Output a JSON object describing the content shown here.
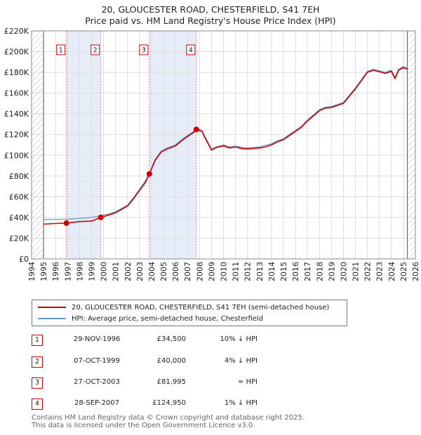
{
  "title_line1": "20, GLOUCESTER ROAD, CHESTERFIELD, S41 7EH",
  "title_line2": "Price paid vs. HM Land Registry's House Price Index (HPI)",
  "chart_data": {
    "type": "line",
    "xlim": [
      1994,
      2026
    ],
    "ylim": [
      0,
      220000
    ],
    "x_ticks": [
      1994,
      1995,
      1996,
      1997,
      1998,
      1999,
      2000,
      2001,
      2002,
      2003,
      2004,
      2005,
      2006,
      2007,
      2008,
      2009,
      2010,
      2011,
      2012,
      2013,
      2014,
      2015,
      2016,
      2017,
      2018,
      2019,
      2020,
      2021,
      2022,
      2023,
      2024,
      2025,
      2026
    ],
    "y_ticks": [
      {
        "v": 0,
        "label": "£0"
      },
      {
        "v": 20000,
        "label": "£20K"
      },
      {
        "v": 40000,
        "label": "£40K"
      },
      {
        "v": 60000,
        "label": "£60K"
      },
      {
        "v": 80000,
        "label": "£80K"
      },
      {
        "v": 100000,
        "label": "£100K"
      },
      {
        "v": 120000,
        "label": "£120K"
      },
      {
        "v": 140000,
        "label": "£140K"
      },
      {
        "v": 160000,
        "label": "£160K"
      },
      {
        "v": 180000,
        "label": "£180K"
      },
      {
        "v": 200000,
        "label": "£200K"
      },
      {
        "v": 220000,
        "label": "£220K"
      }
    ],
    "data_start": 1995.0,
    "data_end": 2025.33,
    "series": [
      {
        "name": "20, GLOUCESTER ROAD, CHESTERFIELD, S41 7EH (semi-detached house)",
        "color": "#cc0000",
        "x": [
          1995.0,
          1996.0,
          1996.91,
          1998.0,
          1999.0,
          1999.77,
          2000.5,
          2001.0,
          2002.0,
          2002.5,
          2003.0,
          2003.5,
          2003.82,
          2004.3,
          2004.8,
          2005.3,
          2006.0,
          2006.5,
          2007.0,
          2007.5,
          2007.74,
          2008.2,
          2008.5,
          2009.0,
          2009.4,
          2010.0,
          2010.5,
          2011.0,
          2011.5,
          2012.0,
          2012.5,
          2013.0,
          2013.5,
          2014.0,
          2014.5,
          2015.0,
          2015.5,
          2016.0,
          2016.5,
          2017.0,
          2017.5,
          2018.0,
          2018.5,
          2019.0,
          2019.5,
          2020.0,
          2020.5,
          2021.0,
          2021.5,
          2022.0,
          2022.5,
          2023.0,
          2023.5,
          2024.0,
          2024.3,
          2024.6,
          2025.0,
          2025.33
        ],
        "y": [
          33500,
          34200,
          34500,
          36000,
          36500,
          40000,
          42500,
          44500,
          51000,
          58000,
          66000,
          74000,
          81995,
          95000,
          103000,
          106000,
          109000,
          114000,
          118000,
          122000,
          124950,
          123000,
          116000,
          105000,
          107500,
          109000,
          107000,
          108000,
          106500,
          106000,
          106500,
          107000,
          108000,
          110000,
          113000,
          115000,
          119000,
          123000,
          127000,
          133000,
          138000,
          143000,
          145500,
          146000,
          148000,
          150000,
          157000,
          164000,
          172000,
          180000,
          182000,
          180500,
          179000,
          181000,
          174000,
          182000,
          184500,
          183000
        ]
      },
      {
        "name": "HPI: Average price, semi-detached house, Chesterfield",
        "color": "#6699cc",
        "x": [
          1995.0,
          1996.0,
          1996.91,
          1998.0,
          1999.0,
          1999.77,
          2000.5,
          2001.0,
          2002.0,
          2002.5,
          2003.0,
          2003.5,
          2003.82,
          2004.3,
          2004.8,
          2005.3,
          2006.0,
          2006.5,
          2007.0,
          2007.5,
          2007.74,
          2008.2,
          2008.5,
          2009.0,
          2009.4,
          2010.0,
          2010.5,
          2011.0,
          2011.5,
          2012.0,
          2012.5,
          2013.0,
          2013.5,
          2014.0,
          2014.5,
          2015.0,
          2015.5,
          2016.0,
          2016.5,
          2017.0,
          2017.5,
          2018.0,
          2018.5,
          2019.0,
          2019.5,
          2020.0,
          2020.5,
          2021.0,
          2021.5,
          2022.0,
          2022.5,
          2023.0,
          2023.5,
          2024.0,
          2024.3,
          2024.6,
          2025.0,
          2025.33
        ],
        "y": [
          38000,
          38200,
          38300,
          39000,
          40000,
          41800,
          43500,
          45500,
          52000,
          59000,
          67000,
          75500,
          82500,
          96000,
          104000,
          107000,
          110000,
          115000,
          119000,
          123000,
          126000,
          124000,
          117000,
          106000,
          108000,
          110000,
          108000,
          109000,
          107500,
          107000,
          107500,
          108000,
          109500,
          111000,
          114000,
          116000,
          120000,
          124000,
          128000,
          134000,
          139000,
          144000,
          146500,
          147000,
          149000,
          151000,
          158000,
          165000,
          173000,
          181000,
          183000,
          181500,
          180000,
          182000,
          175000,
          183000,
          185500,
          184000
        ]
      }
    ],
    "sales": [
      {
        "label": "1",
        "x": 1996.91,
        "y": 34500
      },
      {
        "label": "2",
        "x": 1999.77,
        "y": 40000
      },
      {
        "label": "3",
        "x": 2003.82,
        "y": 81995
      },
      {
        "label": "4",
        "x": 2007.74,
        "y": 124950
      }
    ],
    "shaded_ranges": [
      [
        1996.91,
        1999.77
      ],
      [
        2003.82,
        2007.74
      ]
    ]
  },
  "legend": {
    "line1": "20, GLOUCESTER ROAD, CHESTERFIELD, S41 7EH (semi-detached house)",
    "line2": "HPI: Average price, semi-detached house, Chesterfield",
    "line1_color": "#cc0000",
    "line2_color": "#6699cc"
  },
  "transactions": [
    {
      "num": "1",
      "date": "29-NOV-1996",
      "price": "£34,500",
      "hpi": "10% ↓ HPI"
    },
    {
      "num": "2",
      "date": "07-OCT-1999",
      "price": "£40,000",
      "hpi": "4% ↓ HPI"
    },
    {
      "num": "3",
      "date": "27-OCT-2003",
      "price": "£81,995",
      "hpi": "≈ HPI"
    },
    {
      "num": "4",
      "date": "28-SEP-2007",
      "price": "£124,950",
      "hpi": "1% ↓ HPI"
    }
  ],
  "footer_line1": "Contains HM Land Registry data © Crown copyright and database right 2025.",
  "footer_line2": "This data is licensed under the Open Government Licence v3.0."
}
